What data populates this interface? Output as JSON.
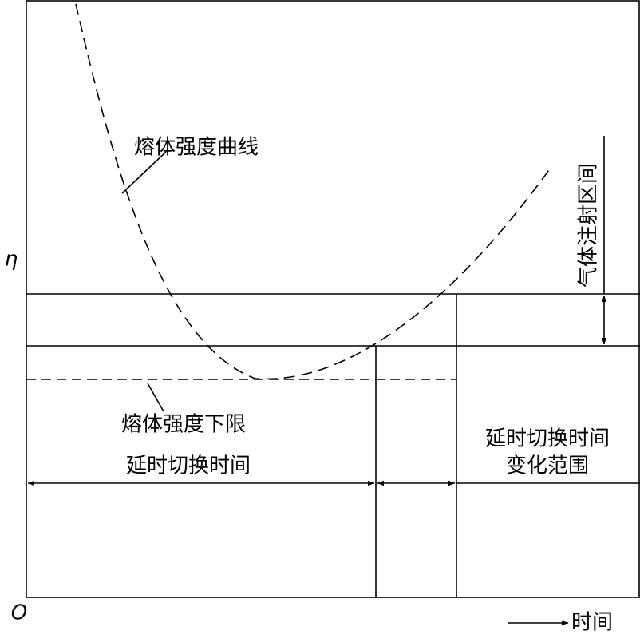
{
  "axes": {
    "y_label": "η",
    "origin": "O",
    "x_label": "时间"
  },
  "labels": {
    "curve": "熔体强度曲线",
    "lower_limit": "熔体强度下限",
    "delay_time": "延时切换时间",
    "delay_range": [
      "延时切换时间",
      "变化范围"
    ],
    "gas_injection": "气体注射区间"
  }
}
